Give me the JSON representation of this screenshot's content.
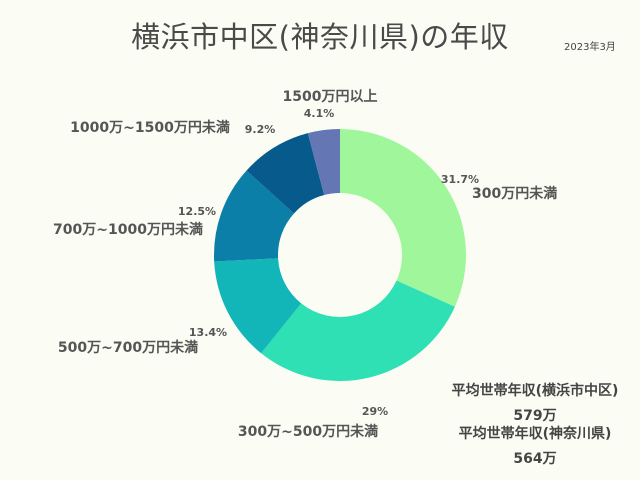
{
  "title": "横浜市中区(神奈川県)の年収",
  "date": "2023年3月",
  "chart_data": {
    "type": "pie",
    "categories": [
      "300万円未満",
      "300万~500万円未満",
      "500万~700万円未満",
      "700万~1000万円未満",
      "1000万~1500万円未満",
      "1500万円以上"
    ],
    "values": [
      31.7,
      29,
      13.4,
      12.5,
      9.2,
      4.1
    ],
    "value_labels": [
      "31.7%",
      "29%",
      "13.4%",
      "12.5%",
      "9.2%",
      "4.1%"
    ],
    "colors": [
      "#a0f79b",
      "#2fe0b4",
      "#12b5b8",
      "#0b7fa8",
      "#075a8c",
      "#6477b4"
    ]
  },
  "summary": {
    "city_label": "平均世帯年収(横浜市中区)",
    "city_value": "579万",
    "pref_label": "平均世帯年収(神奈川県)",
    "pref_value": "564万"
  }
}
